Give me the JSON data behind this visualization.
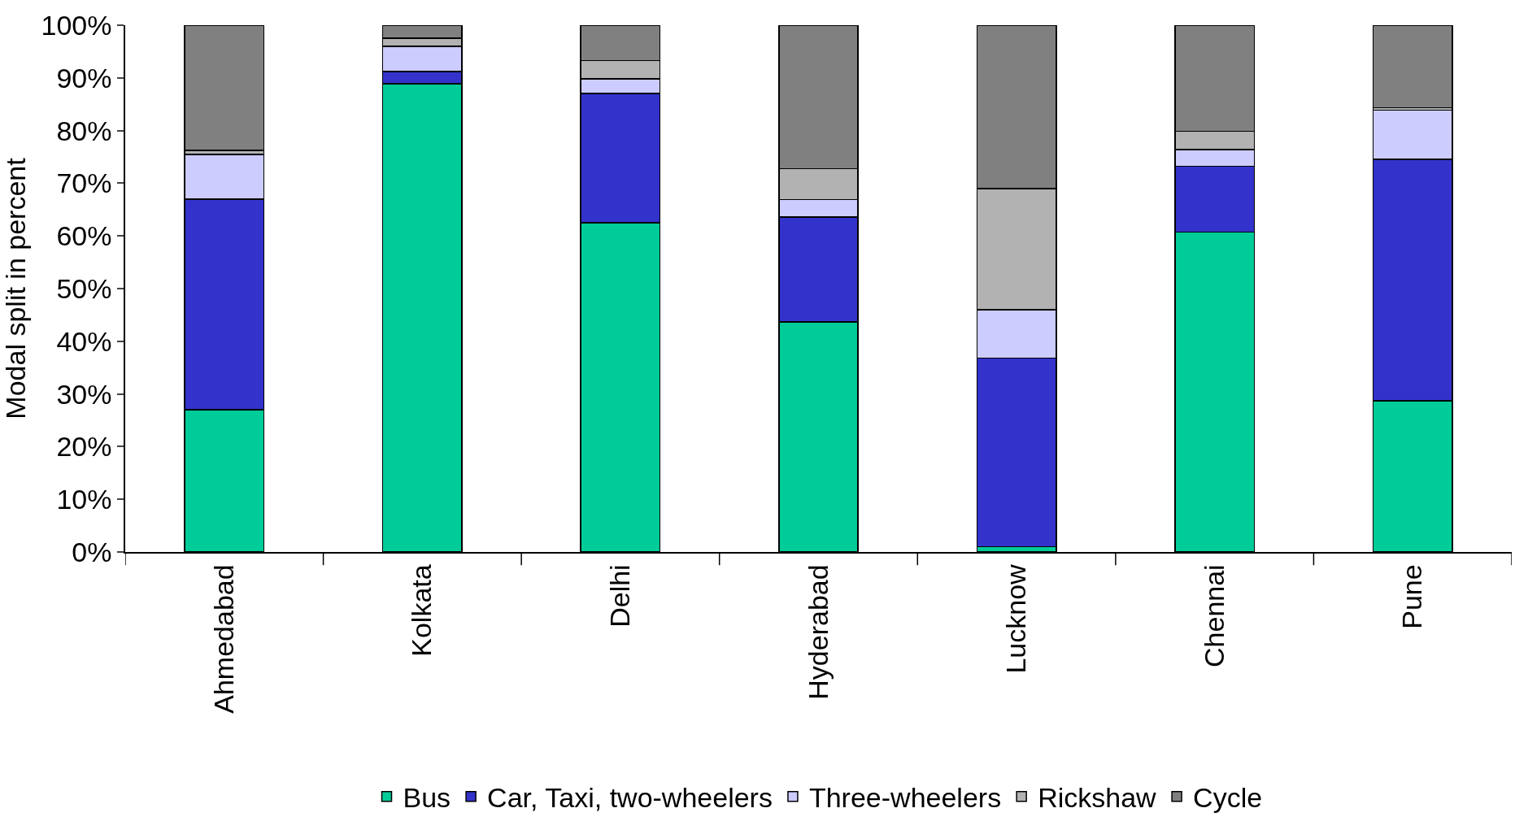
{
  "chart_data": {
    "type": "bar",
    "stacked": true,
    "ylabel": "Modal split in percent",
    "categories": [
      "Ahmedabad",
      "Kolkata",
      "Delhi",
      "Hyderabad",
      "Lucknow",
      "Chennai",
      "Pune"
    ],
    "series": [
      {
        "name": "Bus",
        "color": "#00cc99",
        "values": [
          27,
          88.9,
          62.5,
          43.7,
          1.0,
          60.7,
          28.7
        ]
      },
      {
        "name": "Car, Taxi, two-wheelers",
        "color": "#3333cc",
        "values": [
          40,
          2.3,
          24.5,
          19.9,
          35.8,
          12.5,
          45.8
        ]
      },
      {
        "name": "Three-wheelers",
        "color": "#ccccff",
        "values": [
          8.5,
          4.8,
          2.8,
          3.3,
          9.2,
          3.2,
          9.4
        ]
      },
      {
        "name": "Rickshaw",
        "color": "#b2b2b2",
        "values": [
          0.7,
          1.5,
          3.5,
          5.9,
          23,
          3.5,
          0.4
        ]
      },
      {
        "name": "Cycle",
        "color": "#808080",
        "values": [
          23.8,
          2.5,
          6.7,
          27.2,
          31,
          20.1,
          15.7
        ]
      }
    ],
    "ylim": [
      0,
      100
    ],
    "yticks": [
      {
        "value": 0,
        "label": "0%"
      },
      {
        "value": 10,
        "label": "10%"
      },
      {
        "value": 20,
        "label": "20%"
      },
      {
        "value": 30,
        "label": "30%"
      },
      {
        "value": 40,
        "label": "40%"
      },
      {
        "value": 50,
        "label": "50%"
      },
      {
        "value": 60,
        "label": "60%"
      },
      {
        "value": 70,
        "label": "70%"
      },
      {
        "value": 80,
        "label": "80%"
      },
      {
        "value": 90,
        "label": "90%"
      },
      {
        "value": 100,
        "label": "100%"
      }
    ],
    "legend": "bottom"
  }
}
